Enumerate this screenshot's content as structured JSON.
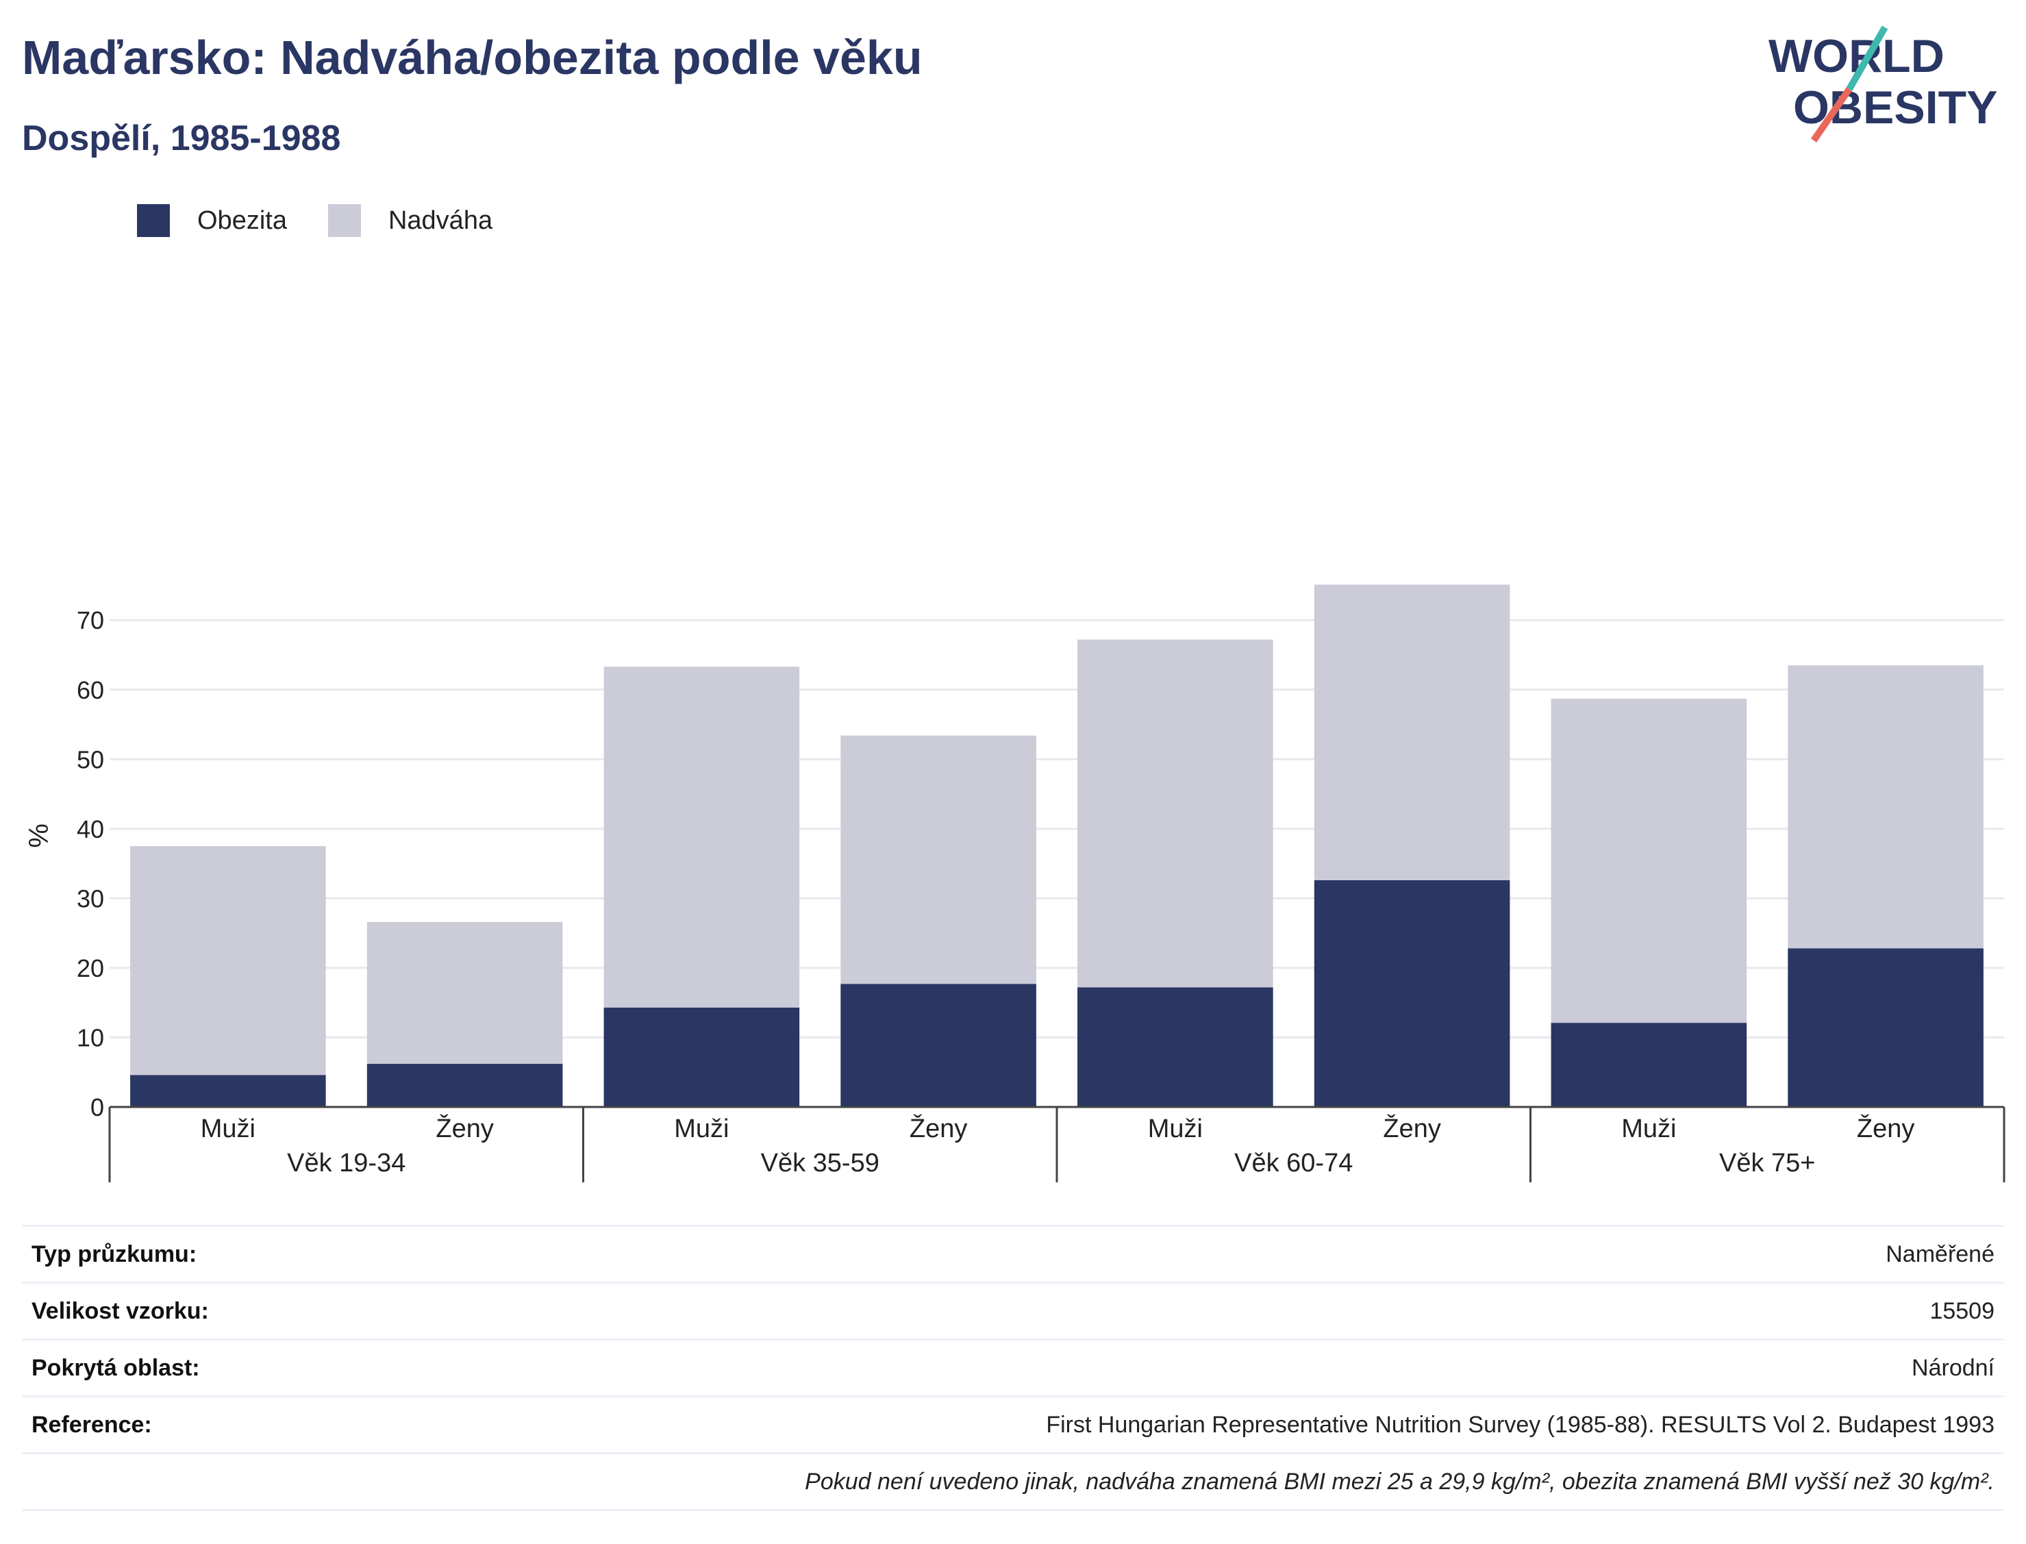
{
  "header": {
    "title": "Maďarsko: Nadváha/obezita podle věku",
    "subtitle": "Dospělí, 1985-1988"
  },
  "logo": {
    "line1": "WORLD",
    "line2": "OBESITY",
    "text_color": "#2a3663",
    "accent_teal": "#3fb8af",
    "accent_red": "#e8675b"
  },
  "legend": [
    {
      "label": "Obezita",
      "color": "#2a3663"
    },
    {
      "label": "Nadváha",
      "color": "#cbccd8"
    }
  ],
  "chart_data": {
    "type": "bar",
    "stacked": true,
    "ylabel": "%",
    "ylim": [
      0,
      78
    ],
    "yticks": [
      0,
      10,
      20,
      30,
      40,
      50,
      60,
      70
    ],
    "grid": true,
    "legend_position": "top-left",
    "groups": [
      "Věk 19-34",
      "Věk 35-59",
      "Věk 60-74",
      "Věk 75+"
    ],
    "categories": [
      "Muži",
      "Ženy",
      "Muži",
      "Ženy",
      "Muži",
      "Ženy",
      "Muži",
      "Ženy"
    ],
    "series": [
      {
        "name": "Obezita",
        "color": "#2a3663",
        "values": [
          4.6,
          6.2,
          14.3,
          17.7,
          17.2,
          32.6,
          12.1,
          22.8
        ]
      },
      {
        "name": "Nadváha",
        "color": "#cbccd8",
        "values": [
          32.9,
          20.4,
          49.0,
          35.7,
          50.0,
          42.5,
          46.6,
          40.7
        ]
      }
    ]
  },
  "info": [
    {
      "key": "Typ průzkumu:",
      "value": "Naměřené"
    },
    {
      "key": "Velikost vzorku:",
      "value": "15509"
    },
    {
      "key": "Pokrytá oblast:",
      "value": "Národní"
    },
    {
      "key": "Reference:",
      "value": "First Hungarian Representative Nutrition Survey (1985-88). RESULTS Vol 2. Budapest 1993"
    }
  ],
  "footnote": "Pokud není uvedeno jinak, nadváha znamená BMI mezi 25 a 29,9 kg/m², obezita znamená BMI vyšší než 30 kg/m²."
}
